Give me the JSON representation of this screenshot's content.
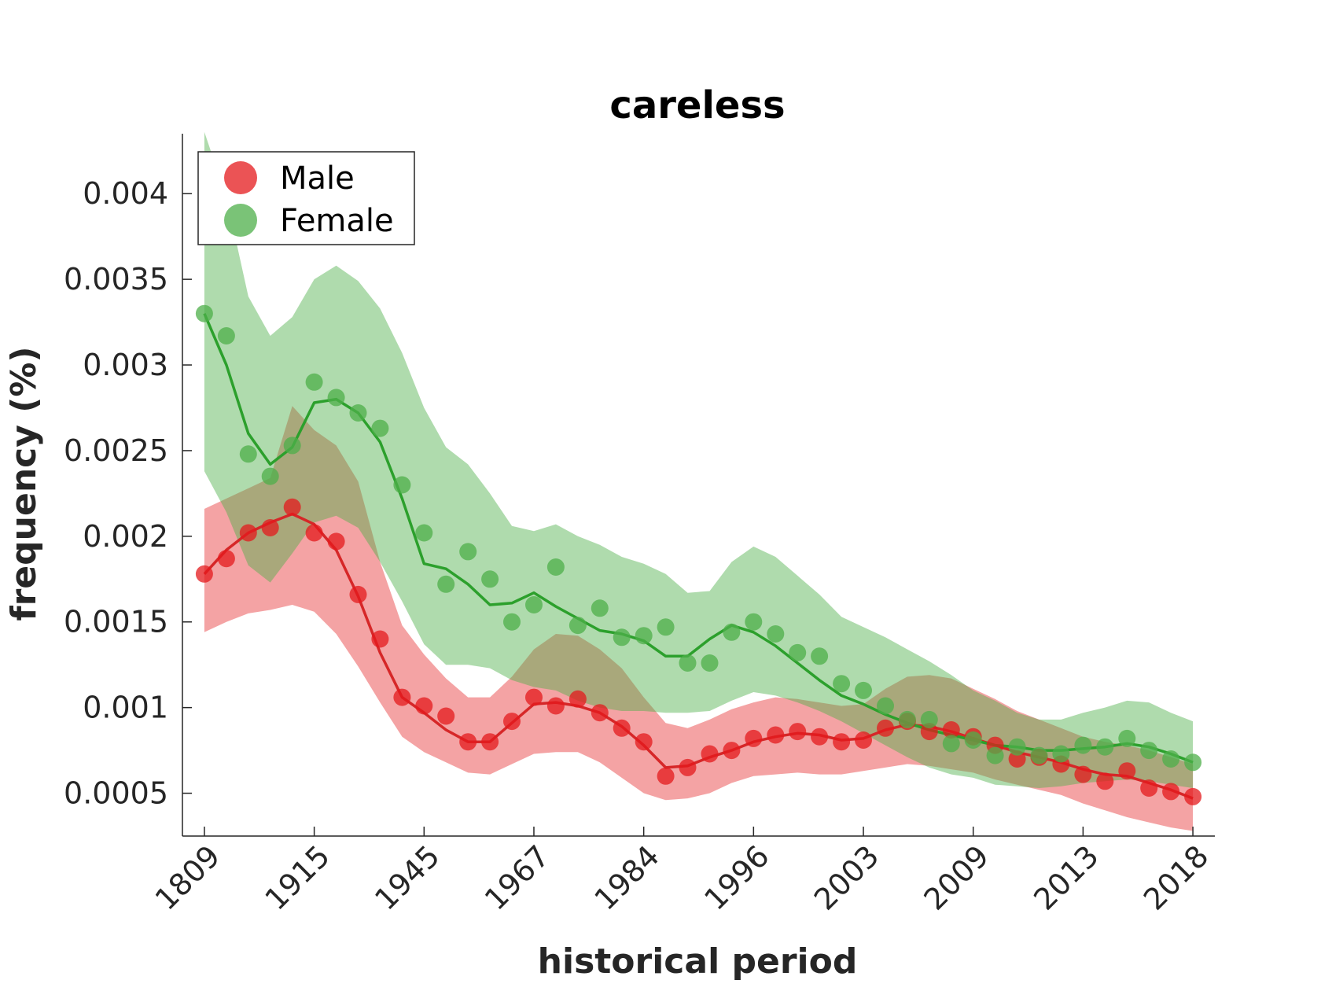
{
  "chart_data": {
    "type": "line",
    "title": "careless",
    "xlabel": "historical period",
    "ylabel": "frequency (%)",
    "ylim": [
      0.00025,
      0.00435
    ],
    "xlim": [
      -1,
      46
    ],
    "x_ticks": [
      {
        "index": 0,
        "label": "1809"
      },
      {
        "index": 5,
        "label": "1915"
      },
      {
        "index": 10,
        "label": "1945"
      },
      {
        "index": 15,
        "label": "1967"
      },
      {
        "index": 20,
        "label": "1984"
      },
      {
        "index": 25,
        "label": "1996"
      },
      {
        "index": 30,
        "label": "2003"
      },
      {
        "index": 35,
        "label": "2009"
      },
      {
        "index": 40,
        "label": "2013"
      },
      {
        "index": 45,
        "label": "2018"
      }
    ],
    "y_ticks": [
      {
        "value": 0.0005,
        "label": "0.0005"
      },
      {
        "value": 0.001,
        "label": "0.001"
      },
      {
        "value": 0.0015,
        "label": "0.0015"
      },
      {
        "value": 0.002,
        "label": "0.002"
      },
      {
        "value": 0.0025,
        "label": "0.0025"
      },
      {
        "value": 0.003,
        "label": "0.003"
      },
      {
        "value": 0.0035,
        "label": "0.0035"
      },
      {
        "value": 0.004,
        "label": "0.004"
      }
    ],
    "grid": false,
    "legend_position": "top-left",
    "series": [
      {
        "name": "Male",
        "color": "#e41a1c",
        "points": [
          0.00178,
          0.00187,
          0.00202,
          0.00205,
          0.00217,
          0.00202,
          0.00197,
          0.00166,
          0.0014,
          0.00106,
          0.00101,
          0.00095,
          0.0008,
          0.0008,
          0.00092,
          0.00106,
          0.00101,
          0.00105,
          0.00097,
          0.00088,
          0.0008,
          0.0006,
          0.00065,
          0.00073,
          0.00075,
          0.00082,
          0.00084,
          0.00086,
          0.00083,
          0.0008,
          0.00081,
          0.00088,
          0.00092,
          0.00086,
          0.00087,
          0.00083,
          0.00078,
          0.0007,
          0.00071,
          0.00067,
          0.00061,
          0.00057,
          0.00063,
          0.00053,
          0.00051,
          0.00048
        ],
        "trend": [
          0.00178,
          0.00192,
          0.00202,
          0.00208,
          0.00213,
          0.00207,
          0.00192,
          0.00165,
          0.00132,
          0.00106,
          0.00097,
          0.00087,
          0.0008,
          0.0008,
          0.00091,
          0.00102,
          0.00103,
          0.00101,
          0.00097,
          0.00089,
          0.00078,
          0.00065,
          0.00066,
          0.00071,
          0.00075,
          0.0008,
          0.00083,
          0.00085,
          0.00084,
          0.00081,
          0.00082,
          0.00087,
          0.0009,
          0.00089,
          0.00086,
          0.00082,
          0.00078,
          0.00074,
          0.00071,
          0.00068,
          0.00064,
          0.00061,
          0.0006,
          0.00056,
          0.00052,
          0.00047
        ],
        "band_upper": [
          0.00216,
          0.00222,
          0.00228,
          0.00234,
          0.00276,
          0.00262,
          0.00253,
          0.00232,
          0.00185,
          0.00148,
          0.00131,
          0.00117,
          0.00106,
          0.00106,
          0.00118,
          0.00134,
          0.00143,
          0.00142,
          0.00134,
          0.00123,
          0.00106,
          0.00091,
          0.00088,
          0.00093,
          0.00099,
          0.00103,
          0.00106,
          0.00105,
          0.00103,
          0.00101,
          0.00102,
          0.00111,
          0.00118,
          0.00119,
          0.00117,
          0.00111,
          0.00105,
          0.00098,
          0.00093,
          0.00088,
          0.00083,
          0.0008,
          0.00078,
          0.00075,
          0.00071,
          0.00067
        ],
        "band_lower": [
          0.00144,
          0.0015,
          0.00155,
          0.00157,
          0.0016,
          0.00156,
          0.00143,
          0.00124,
          0.00103,
          0.00083,
          0.00074,
          0.00068,
          0.00062,
          0.00061,
          0.00067,
          0.00073,
          0.00074,
          0.00074,
          0.00068,
          0.00059,
          0.0005,
          0.00046,
          0.00047,
          0.0005,
          0.00056,
          0.0006,
          0.00061,
          0.00062,
          0.00061,
          0.00061,
          0.00063,
          0.00065,
          0.00067,
          0.00066,
          0.00064,
          0.00062,
          0.00058,
          0.00055,
          0.00052,
          0.00049,
          0.00044,
          0.0004,
          0.00036,
          0.00033,
          0.0003,
          0.00028
        ]
      },
      {
        "name": "Female",
        "color": "#4daf4a",
        "points": [
          0.0033,
          0.00317,
          0.00248,
          0.00235,
          0.00253,
          0.0029,
          0.00281,
          0.00272,
          0.00263,
          0.0023,
          0.00202,
          0.00172,
          0.00191,
          0.00175,
          0.0015,
          0.0016,
          0.00182,
          0.00148,
          0.00158,
          0.00141,
          0.00142,
          0.00147,
          0.00126,
          0.00126,
          0.00144,
          0.0015,
          0.00143,
          0.00132,
          0.0013,
          0.00114,
          0.0011,
          0.00101,
          0.00093,
          0.00093,
          0.00079,
          0.00081,
          0.00072,
          0.00077,
          0.00072,
          0.00073,
          0.00078,
          0.00077,
          0.00082,
          0.00075,
          0.0007,
          0.00068
        ],
        "trend": [
          0.0033,
          0.003,
          0.0026,
          0.00242,
          0.00252,
          0.00278,
          0.0028,
          0.00272,
          0.00255,
          0.00222,
          0.00184,
          0.00181,
          0.00172,
          0.0016,
          0.00161,
          0.00167,
          0.00159,
          0.00152,
          0.00145,
          0.00143,
          0.00139,
          0.0013,
          0.0013,
          0.0014,
          0.00148,
          0.00144,
          0.00136,
          0.00126,
          0.00116,
          0.00107,
          0.00102,
          0.00096,
          0.00091,
          0.00087,
          0.00084,
          0.00081,
          0.00078,
          0.00077,
          0.00075,
          0.00075,
          0.00076,
          0.00077,
          0.00079,
          0.00077,
          0.00073,
          0.00068
        ],
        "band_upper": [
          0.00436,
          0.00398,
          0.0034,
          0.00317,
          0.00328,
          0.0035,
          0.00358,
          0.00349,
          0.00333,
          0.00307,
          0.00275,
          0.00252,
          0.00242,
          0.00225,
          0.00206,
          0.00203,
          0.00207,
          0.002,
          0.00195,
          0.00188,
          0.00184,
          0.00178,
          0.00167,
          0.00168,
          0.00185,
          0.00194,
          0.00188,
          0.00177,
          0.00166,
          0.00153,
          0.00147,
          0.00141,
          0.00134,
          0.00127,
          0.00119,
          0.0011,
          0.00104,
          0.00097,
          0.00093,
          0.00093,
          0.00097,
          0.001,
          0.00104,
          0.00103,
          0.00097,
          0.00092
        ],
        "band_lower": [
          0.00238,
          0.00214,
          0.00183,
          0.00173,
          0.0019,
          0.00208,
          0.00212,
          0.00205,
          0.00185,
          0.00162,
          0.00137,
          0.00125,
          0.00125,
          0.00123,
          0.00116,
          0.00112,
          0.0011,
          0.00104,
          0.001,
          0.00098,
          0.00098,
          0.00097,
          0.00097,
          0.00098,
          0.00104,
          0.00109,
          0.00107,
          0.00103,
          0.00098,
          0.00092,
          0.00085,
          0.00078,
          0.00071,
          0.00065,
          0.00061,
          0.00059,
          0.00055,
          0.00054,
          0.00053,
          0.00054,
          0.00056,
          0.00057,
          0.00058,
          0.00057,
          0.00055,
          0.00053
        ]
      }
    ]
  }
}
